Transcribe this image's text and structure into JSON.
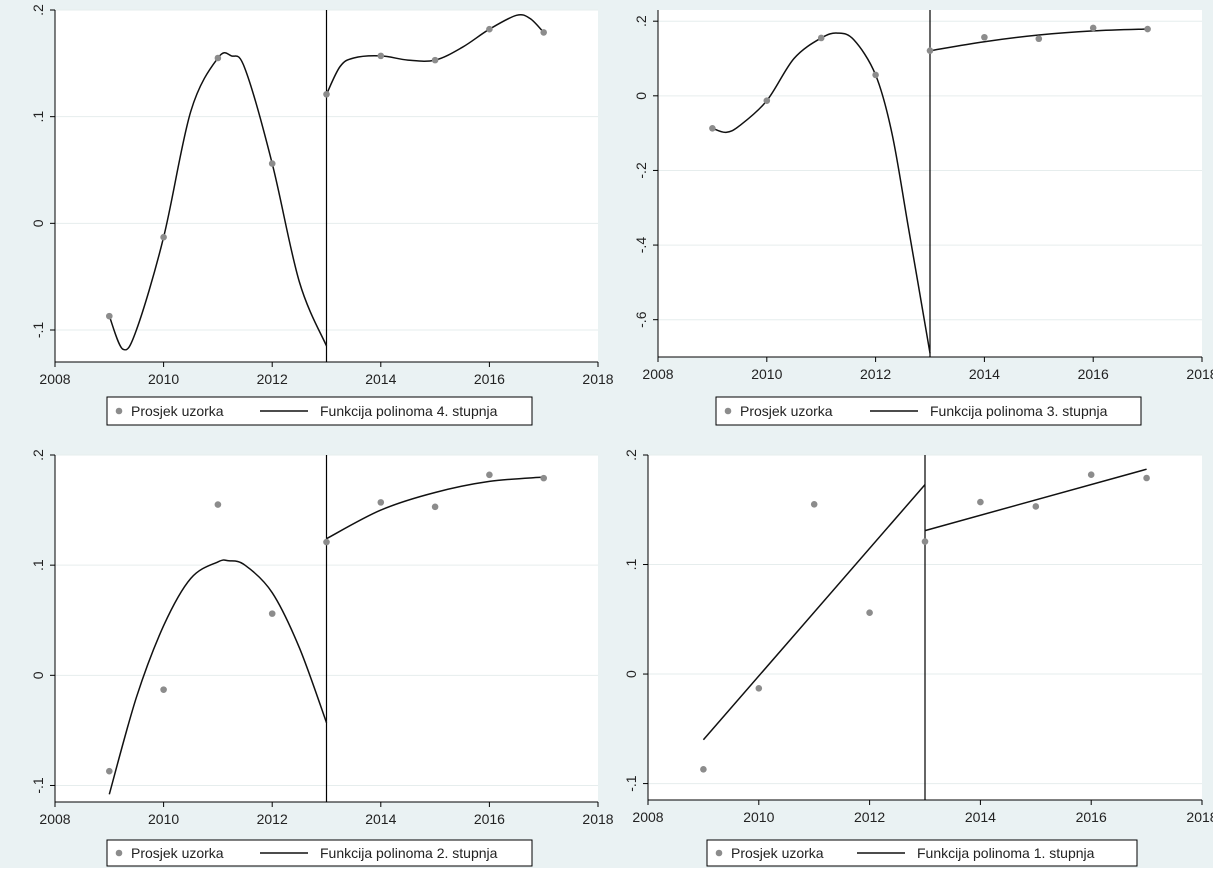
{
  "background": "#eaf2f3",
  "chart_data": [
    {
      "type": "scatter",
      "xlim": [
        2008,
        2018
      ],
      "xticks": [
        2008,
        2010,
        2012,
        2014,
        2016,
        2018
      ],
      "ylim": [
        -0.13,
        0.2
      ],
      "yticks": [
        -0.1,
        0,
        0.1,
        0.2
      ],
      "ytick_labels": [
        "-.1",
        "0",
        ".1",
        ".2"
      ],
      "grid": true,
      "cutoff": 2013,
      "legend_position": "bottom",
      "series": [
        {
          "name": "Prosjek uzorka",
          "x": [
            2009,
            2010,
            2011,
            2012,
            2013,
            2014,
            2015,
            2016,
            2017
          ],
          "y": [
            -0.087,
            -0.013,
            0.155,
            0.056,
            0.121,
            0.157,
            0.153,
            0.182,
            0.179
          ]
        },
        {
          "name": "Funkcija polinoma 4. stupnja",
          "left": {
            "x": [
              2009,
              2009.25,
              2009.5,
              2010,
              2010.5,
              2011,
              2011.25,
              2011.5,
              2012,
              2012.5,
              2013
            ],
            "y": [
              -0.087,
              -0.118,
              -0.1,
              -0.013,
              0.105,
              0.155,
              0.157,
              0.145,
              0.056,
              -0.055,
              -0.115
            ]
          },
          "right": {
            "x": [
              2013,
              2013.25,
              2013.5,
              2014,
              2014.5,
              2015,
              2015.5,
              2016,
              2016.5,
              2016.75,
              2017
            ],
            "y": [
              0.121,
              0.147,
              0.155,
              0.157,
              0.153,
              0.153,
              0.165,
              0.182,
              0.195,
              0.192,
              0.179
            ]
          }
        }
      ]
    },
    {
      "type": "scatter",
      "xlim": [
        2008,
        2018
      ],
      "xticks": [
        2008,
        2010,
        2012,
        2014,
        2016,
        2018
      ],
      "ylim": [
        -0.7,
        0.23
      ],
      "yticks": [
        -0.6,
        -0.4,
        -0.2,
        0,
        0.2
      ],
      "ytick_labels": [
        "-.6",
        "-.4",
        "-.2",
        "0",
        ".2"
      ],
      "grid": true,
      "cutoff": 2013,
      "legend_position": "bottom",
      "series": [
        {
          "name": "Prosjek uzorka",
          "x": [
            2009,
            2010,
            2011,
            2012,
            2013,
            2014,
            2015,
            2016,
            2017
          ],
          "y": [
            -0.087,
            -0.013,
            0.155,
            0.056,
            0.121,
            0.157,
            0.153,
            0.182,
            0.179
          ]
        },
        {
          "name": "Funkcija polinoma 3. stupnja",
          "left": {
            "x": [
              2009,
              2009.25,
              2009.5,
              2010,
              2010.5,
              2011,
              2011.3,
              2011.6,
              2012,
              2012.3,
              2012.6,
              2013
            ],
            "y": [
              -0.087,
              -0.098,
              -0.08,
              -0.013,
              0.1,
              0.155,
              0.168,
              0.15,
              0.056,
              -0.1,
              -0.35,
              -0.69
            ]
          },
          "right": {
            "x": [
              2013,
              2014,
              2015,
              2016,
              2017
            ],
            "y": [
              0.121,
              0.145,
              0.163,
              0.174,
              0.179
            ]
          }
        }
      ]
    },
    {
      "type": "scatter",
      "xlim": [
        2008,
        2018
      ],
      "xticks": [
        2008,
        2010,
        2012,
        2014,
        2016,
        2018
      ],
      "ylim": [
        -0.115,
        0.2
      ],
      "yticks": [
        -0.1,
        0,
        0.1,
        0.2
      ],
      "ytick_labels": [
        "-.1",
        "0",
        ".1",
        ".2"
      ],
      "grid": true,
      "cutoff": 2013,
      "legend_position": "bottom",
      "series": [
        {
          "name": "Prosjek uzorka",
          "x": [
            2009,
            2010,
            2011,
            2012,
            2013,
            2014,
            2015,
            2016,
            2017
          ],
          "y": [
            -0.087,
            -0.013,
            0.155,
            0.056,
            0.121,
            0.157,
            0.153,
            0.182,
            0.179
          ]
        },
        {
          "name": "Funkcija polinoma 2. stupnja",
          "left": {
            "x": [
              2009,
              2009.5,
              2010,
              2010.5,
              2011,
              2011.2,
              2011.5,
              2012,
              2012.5,
              2013
            ],
            "y": [
              -0.108,
              -0.02,
              0.045,
              0.088,
              0.103,
              0.104,
              0.1,
              0.075,
              0.025,
              -0.043
            ]
          },
          "right": {
            "x": [
              2013,
              2014,
              2015,
              2016,
              2017
            ],
            "y": [
              0.124,
              0.15,
              0.166,
              0.176,
              0.18
            ]
          }
        }
      ]
    },
    {
      "type": "scatter",
      "xlim": [
        2008,
        2018
      ],
      "xticks": [
        2008,
        2010,
        2012,
        2014,
        2016,
        2018
      ],
      "ylim": [
        -0.115,
        0.2
      ],
      "yticks": [
        -0.1,
        0,
        0.1,
        0.2
      ],
      "ytick_labels": [
        "-.1",
        "0",
        ".1",
        ".2"
      ],
      "grid": true,
      "cutoff": 2013,
      "legend_position": "bottom",
      "series": [
        {
          "name": "Prosjek uzorka",
          "x": [
            2009,
            2010,
            2011,
            2012,
            2013,
            2014,
            2015,
            2016,
            2017
          ],
          "y": [
            -0.087,
            -0.013,
            0.155,
            0.056,
            0.121,
            0.157,
            0.153,
            0.182,
            0.179
          ]
        },
        {
          "name": "Funkcija polinoma 1. stupnja",
          "left": {
            "x": [
              2009,
              2013
            ],
            "y": [
              -0.06,
              0.173
            ]
          },
          "right": {
            "x": [
              2013,
              2017
            ],
            "y": [
              0.131,
              0.187
            ]
          }
        }
      ]
    }
  ]
}
